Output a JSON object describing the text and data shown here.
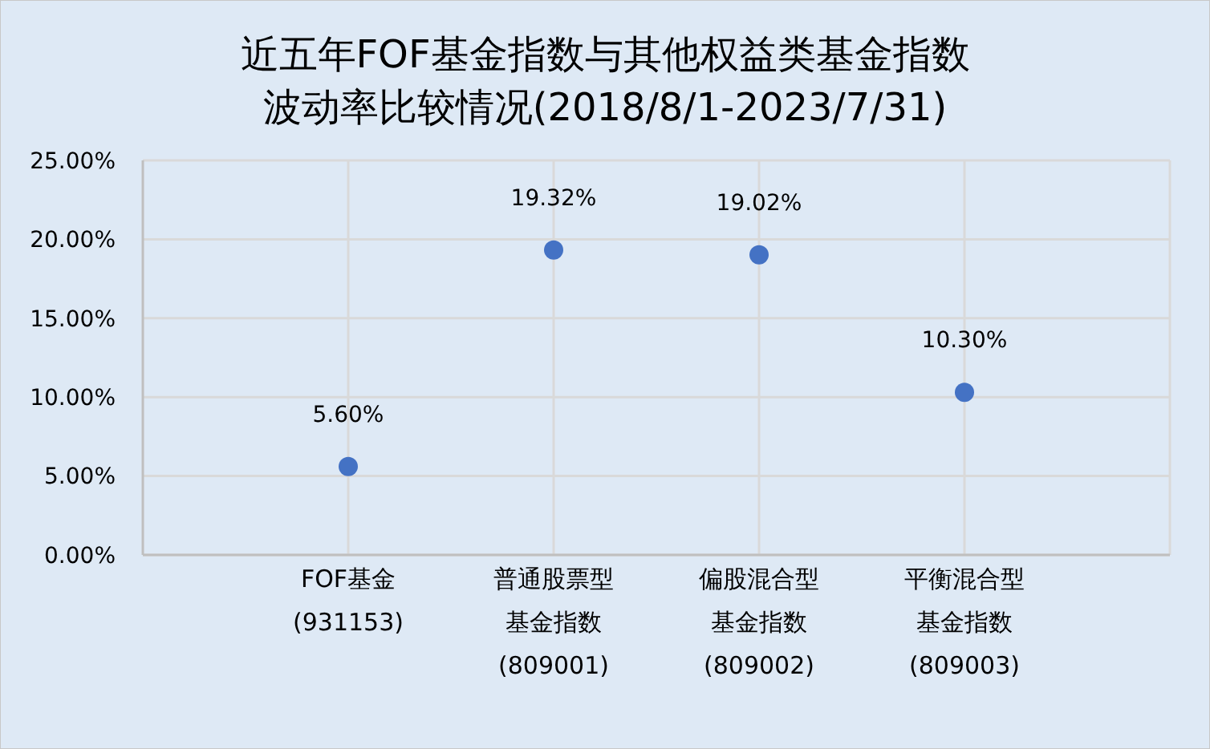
{
  "chart_data": {
    "type": "scatter",
    "title": "近五年FOF基金指数与其他权益类基金指数",
    "subtitle": "波动率比较情况(2018/8/1-2023/7/31)",
    "categories": [
      "FOF基金(931153)",
      "普通股票型基金指数(809001)",
      "偏股混合型基金指数(809002)",
      "平衡混合型基金指数(809003)"
    ],
    "values": [
      5.6,
      19.32,
      19.02,
      10.3
    ],
    "value_labels": [
      "5.60%",
      "19.32%",
      "19.02%",
      "10.30%"
    ],
    "color": "#4472c4",
    "marker": "circle",
    "ylim": [
      0,
      25
    ],
    "yticks": [
      {
        "value": 0,
        "label": "0.00%"
      },
      {
        "value": 5,
        "label": "5.00%"
      },
      {
        "value": 10,
        "label": "10.00%"
      },
      {
        "value": 15,
        "label": "15.00%"
      },
      {
        "value": 20,
        "label": "20.00%"
      },
      {
        "value": 25,
        "label": "25.00%"
      }
    ],
    "grid": true
  }
}
